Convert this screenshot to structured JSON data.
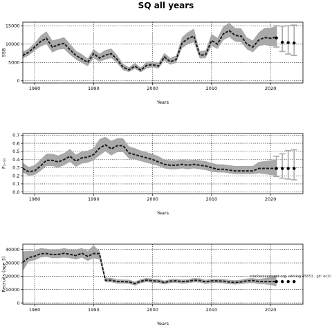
{
  "figure": {
    "title": "SQ all years",
    "note": "stockassessment.org: whiting 45653 , git: ec2c"
  },
  "chart_data": [
    {
      "type": "line",
      "ylabel": "SSB",
      "xlabel": "Years",
      "xlim": [
        1978,
        2025.5
      ],
      "ylim": [
        -600,
        16000
      ],
      "xticks": [
        1980,
        1990,
        2000,
        2010,
        2020
      ],
      "xtick_labels": [
        "1980",
        "1990",
        "2000",
        "2010",
        "2020"
      ],
      "yticks": [
        0,
        5000,
        10000,
        15000
      ],
      "ytick_labels": [
        "0",
        "5000",
        "10000",
        "15000"
      ],
      "grid": true,
      "x": [
        1978,
        1979,
        1980,
        1981,
        1982,
        1983,
        1984,
        1985,
        1986,
        1987,
        1988,
        1989,
        1990,
        1991,
        1992,
        1993,
        1994,
        1995,
        1996,
        1997,
        1998,
        1999,
        2000,
        2001,
        2002,
        2003,
        2004,
        2005,
        2006,
        2007,
        2008,
        2009,
        2010,
        2011,
        2012,
        2013,
        2014,
        2015,
        2016,
        2017,
        2018,
        2019,
        2020,
        2021
      ],
      "estimate": [
        6900,
        7800,
        9200,
        10700,
        11600,
        9200,
        9800,
        10200,
        8500,
        6900,
        6000,
        5000,
        7400,
        6200,
        7000,
        7400,
        5800,
        3700,
        3000,
        4000,
        2900,
        4200,
        4400,
        4000,
        6500,
        5200,
        5800,
        10300,
        11500,
        12200,
        7000,
        7100,
        11000,
        10000,
        12800,
        13700,
        12400,
        12200,
        10000,
        9200,
        11100,
        11800,
        11600,
        11900
      ],
      "lower": [
        6100,
        6900,
        8200,
        9300,
        10000,
        7700,
        8500,
        8700,
        7100,
        5800,
        4900,
        4000,
        6200,
        5200,
        5800,
        6200,
        4800,
        2900,
        2400,
        3300,
        2300,
        3400,
        3700,
        3300,
        5500,
        4400,
        4900,
        8900,
        10000,
        10500,
        6100,
        6200,
        9500,
        8700,
        11100,
        11900,
        10700,
        10500,
        8600,
        7800,
        9400,
        9800,
        9400,
        9500
      ],
      "upper": [
        7900,
        8800,
        10300,
        12300,
        13500,
        11000,
        11400,
        11900,
        10100,
        8200,
        7300,
        6100,
        8700,
        7400,
        8400,
        8800,
        7000,
        4600,
        3700,
        4900,
        3600,
        5200,
        5300,
        4900,
        7600,
        6200,
        6900,
        11900,
        13300,
        14200,
        8100,
        8300,
        12800,
        11700,
        14800,
        15800,
        14400,
        14300,
        11800,
        11000,
        13200,
        14400,
        14500,
        14900
      ],
      "forecast": {
        "x": [
          2021,
          2022,
          2023,
          2024
        ],
        "median": [
          11700,
          10500,
          10400,
          10300
        ],
        "low": [
          9200,
          8000,
          7300,
          6900
        ],
        "high": [
          15000,
          14900,
          15000,
          15200
        ]
      }
    },
    {
      "type": "line",
      "ylabel": "F₃₋₁₀",
      "xlabel": "Years",
      "xlim": [
        1978,
        2025.5
      ],
      "ylim": [
        -0.02,
        0.72
      ],
      "xticks": [
        1980,
        1990,
        2000,
        2010,
        2020
      ],
      "xtick_labels": [
        "1980",
        "1990",
        "2000",
        "2010",
        "2020"
      ],
      "yticks": [
        0,
        0.1,
        0.2,
        0.3,
        0.4,
        0.5,
        0.6,
        0.7
      ],
      "ytick_labels": [
        "0.0",
        "0.1",
        "0.2",
        "0.3",
        "0.4",
        "0.5",
        "0.6",
        "0.7"
      ],
      "grid": true,
      "x": [
        1978,
        1979,
        1980,
        1981,
        1982,
        1983,
        1984,
        1985,
        1986,
        1987,
        1988,
        1989,
        1990,
        1991,
        1992,
        1993,
        1994,
        1995,
        1996,
        1997,
        1998,
        1999,
        2000,
        2001,
        2002,
        2003,
        2004,
        2005,
        2006,
        2007,
        2008,
        2009,
        2010,
        2011,
        2012,
        2013,
        2014,
        2015,
        2016,
        2017,
        2018,
        2019,
        2020,
        2021
      ],
      "estimate": [
        0.29,
        0.25,
        0.26,
        0.32,
        0.39,
        0.39,
        0.37,
        0.4,
        0.44,
        0.38,
        0.42,
        0.43,
        0.46,
        0.54,
        0.58,
        0.53,
        0.57,
        0.57,
        0.48,
        0.46,
        0.44,
        0.42,
        0.4,
        0.37,
        0.34,
        0.33,
        0.33,
        0.34,
        0.33,
        0.34,
        0.33,
        0.32,
        0.3,
        0.28,
        0.28,
        0.27,
        0.26,
        0.26,
        0.26,
        0.26,
        0.29,
        0.29,
        0.29,
        0.29
      ],
      "lower": [
        0.24,
        0.2,
        0.21,
        0.26,
        0.32,
        0.32,
        0.3,
        0.33,
        0.37,
        0.31,
        0.35,
        0.36,
        0.39,
        0.45,
        0.5,
        0.45,
        0.49,
        0.49,
        0.41,
        0.4,
        0.38,
        0.36,
        0.34,
        0.32,
        0.29,
        0.28,
        0.28,
        0.29,
        0.28,
        0.29,
        0.28,
        0.27,
        0.25,
        0.24,
        0.24,
        0.23,
        0.22,
        0.22,
        0.22,
        0.22,
        0.23,
        0.22,
        0.21,
        0.2
      ],
      "upper": [
        0.36,
        0.31,
        0.33,
        0.4,
        0.47,
        0.47,
        0.45,
        0.48,
        0.53,
        0.46,
        0.5,
        0.51,
        0.54,
        0.65,
        0.68,
        0.63,
        0.66,
        0.66,
        0.56,
        0.54,
        0.51,
        0.49,
        0.47,
        0.44,
        0.4,
        0.39,
        0.39,
        0.4,
        0.39,
        0.4,
        0.39,
        0.38,
        0.36,
        0.34,
        0.34,
        0.33,
        0.32,
        0.32,
        0.32,
        0.32,
        0.37,
        0.38,
        0.39,
        0.4
      ],
      "forecast": {
        "x": [
          2021,
          2022,
          2023,
          2024
        ],
        "median": [
          0.29,
          0.29,
          0.29,
          0.29
        ],
        "low": [
          0.19,
          0.17,
          0.16,
          0.15
        ],
        "high": [
          0.44,
          0.47,
          0.51,
          0.52
        ]
      }
    },
    {
      "type": "line",
      "ylabel": "Recruits (age 3)",
      "xlabel": "Years",
      "xlim": [
        1978,
        2025.5
      ],
      "ylim": [
        -1000,
        44000
      ],
      "xticks": [
        1980,
        1990,
        2000,
        2010,
        2020
      ],
      "xtick_labels": [
        "1980",
        "1990",
        "2000",
        "2010",
        "2020"
      ],
      "yticks": [
        0,
        10000,
        20000,
        30000,
        40000
      ],
      "ytick_labels": [
        "0",
        "10000",
        "20000",
        "30000",
        "40000"
      ],
      "grid": true,
      "x": [
        1978,
        1979,
        1980,
        1981,
        1982,
        1983,
        1984,
        1985,
        1986,
        1987,
        1988,
        1989,
        1990,
        1991,
        1992,
        1993,
        1994,
        1995,
        1996,
        1997,
        1998,
        1999,
        2000,
        2001,
        2002,
        2003,
        2004,
        2005,
        2006,
        2007,
        2008,
        2009,
        2010,
        2011,
        2012,
        2013,
        2014,
        2015,
        2016,
        2017,
        2018,
        2019,
        2020,
        2021
      ],
      "estimate": [
        30500,
        34000,
        35000,
        36800,
        37000,
        36200,
        36300,
        37200,
        36400,
        35400,
        37300,
        34800,
        37000,
        36900,
        17000,
        17000,
        16000,
        16000,
        15800,
        14500,
        16300,
        17100,
        16600,
        16400,
        15300,
        16400,
        16600,
        16000,
        16300,
        17000,
        16800,
        15800,
        16500,
        16500,
        16300,
        15700,
        15400,
        15800,
        16600,
        16800,
        16100,
        16000,
        16000,
        16000
      ],
      "lower": [
        24000,
        31000,
        32000,
        34000,
        34500,
        33500,
        33500,
        34000,
        33500,
        32500,
        34000,
        31500,
        33500,
        32500,
        15500,
        15500,
        14600,
        14600,
        14400,
        13100,
        14800,
        15600,
        15100,
        14900,
        13900,
        14900,
        15100,
        14500,
        14800,
        15400,
        15200,
        14300,
        14900,
        14900,
        14700,
        14100,
        13800,
        14200,
        14800,
        14900,
        14200,
        14000,
        13500,
        12500
      ],
      "upper": [
        38500,
        39000,
        39000,
        41000,
        40500,
        40000,
        40000,
        41000,
        40000,
        40000,
        41000,
        39000,
        43000,
        39000,
        19000,
        18800,
        17600,
        17500,
        17400,
        16000,
        17800,
        18700,
        18200,
        17900,
        16700,
        17800,
        18100,
        17500,
        17700,
        18600,
        18400,
        17300,
        18100,
        18100,
        17900,
        17300,
        17000,
        17400,
        18300,
        18500,
        18000,
        18500,
        19500,
        21000
      ],
      "forecast": {
        "x": [
          2021,
          2022,
          2023,
          2024
        ],
        "median": [
          16000,
          16000,
          16000,
          16000
        ],
        "low": [
          16000,
          16000,
          16000,
          16000
        ],
        "high": [
          16000,
          16000,
          16000,
          16000
        ]
      }
    }
  ]
}
